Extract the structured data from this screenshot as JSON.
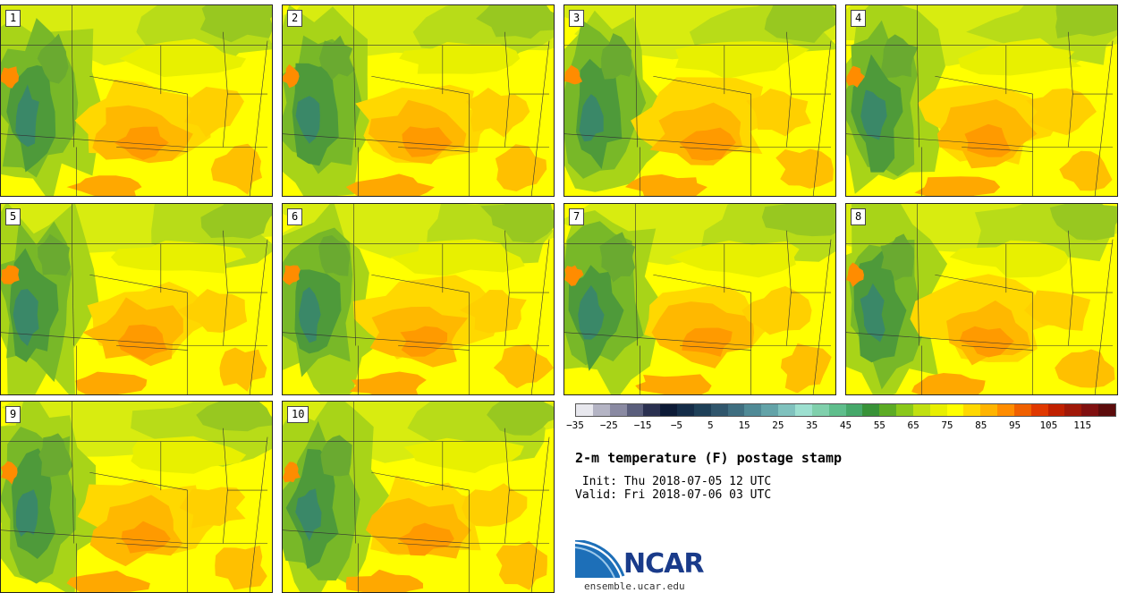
{
  "panels": [
    {
      "label": "1"
    },
    {
      "label": "2"
    },
    {
      "label": "3"
    },
    {
      "label": "4"
    },
    {
      "label": "5"
    },
    {
      "label": "6"
    },
    {
      "label": "7"
    },
    {
      "label": "8"
    },
    {
      "label": "9"
    },
    {
      "label": "10"
    }
  ],
  "colorbar": {
    "tick_labels": [
      "−35",
      "−25",
      "−15",
      "−5",
      "5",
      "15",
      "25",
      "35",
      "45",
      "55",
      "65",
      "75",
      "85",
      "95",
      "105",
      "115"
    ],
    "colors": [
      "#e8e8ee",
      "#b4b4c4",
      "#8a8aa2",
      "#5a5e7c",
      "#2a3050",
      "#0c1a36",
      "#142c48",
      "#1e4058",
      "#30566c",
      "#3f6e80",
      "#508a96",
      "#63a3a8",
      "#80c2be",
      "#9de0d0",
      "#80d0ac",
      "#5fbe8c",
      "#46a86a",
      "#389238",
      "#5cab24",
      "#8ac81a",
      "#c0e010",
      "#e8ef00",
      "#ffff00",
      "#ffd800",
      "#ffb400",
      "#ff8c00",
      "#f06000",
      "#e03800",
      "#c02000",
      "#a01808",
      "#801010",
      "#5c0c0c"
    ]
  },
  "title": "2-m temperature (F) postage stamp",
  "init": " Init: Thu 2018-07-05 12 UTC",
  "valid": "Valid: Fri 2018-07-06 03 UTC",
  "logo": {
    "text": "NCAR",
    "url": "ensemble.ucar.edu"
  }
}
